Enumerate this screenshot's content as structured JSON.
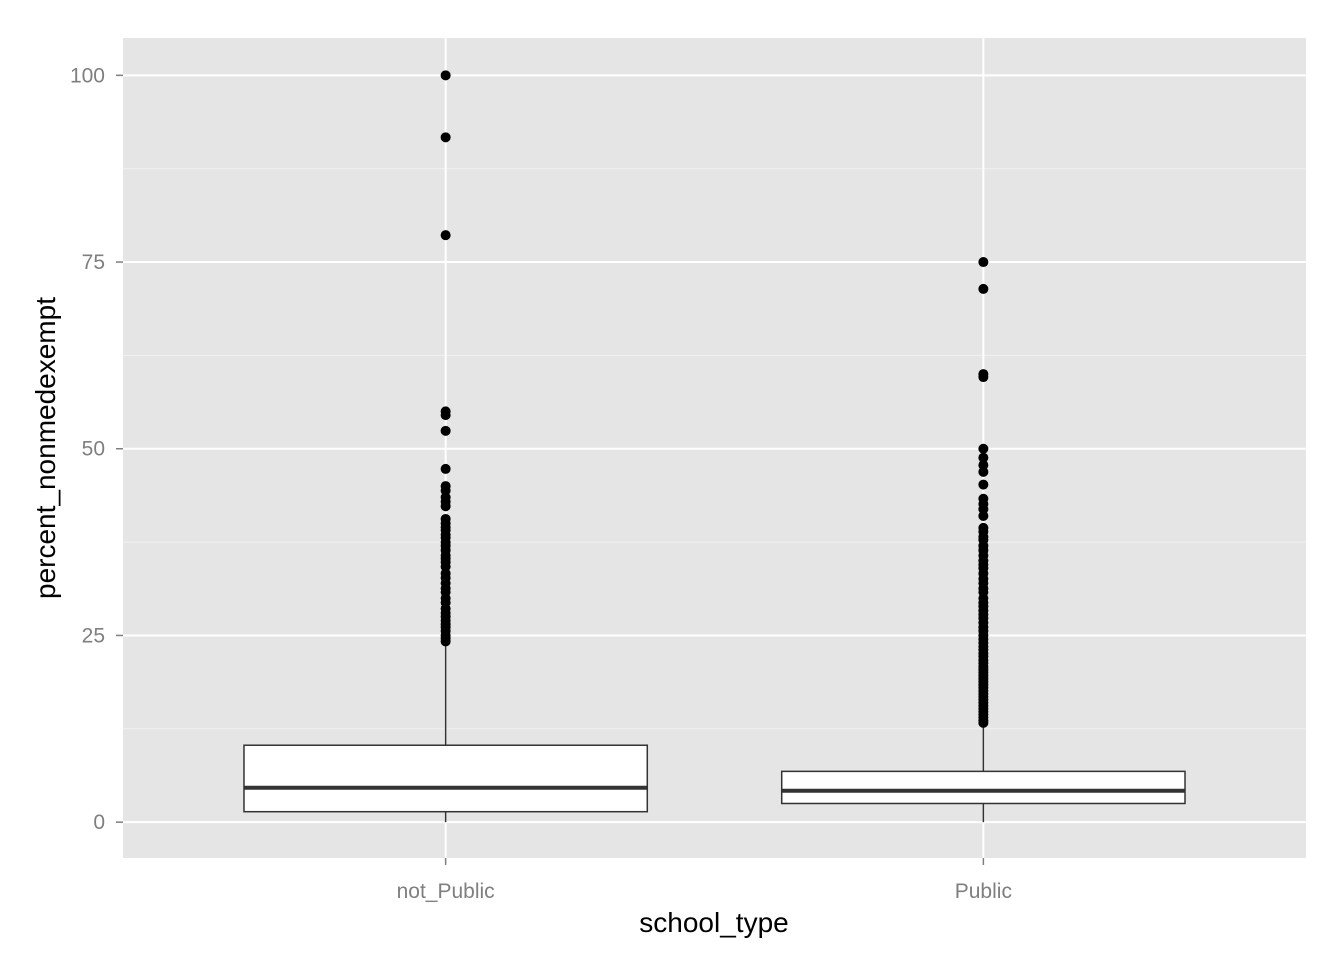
{
  "chart_data": {
    "type": "box",
    "title": "",
    "xlabel": "school_type",
    "ylabel": "percent_nonmedexempt",
    "ylim": [
      -4.8,
      105
    ],
    "yticks": [
      0,
      25,
      50,
      75,
      100
    ],
    "ytick_labels": [
      "0",
      "25",
      "50",
      "75",
      "100"
    ],
    "grid": true,
    "theme": {
      "panel_background": "#e5e5e5",
      "grid_major": "#ffffff",
      "grid_minor": "#f2f2f2",
      "box_fill": "#ffffff",
      "box_stroke": "#333333",
      "outlier_color": "#000000",
      "tick_label_color": "#7f7f7f"
    },
    "categories": [
      "not_Public",
      "Public"
    ],
    "boxes": [
      {
        "category": "not_Public",
        "min": 0,
        "q1": 1.4,
        "median": 4.6,
        "q3": 10.3,
        "whisker_high": 23.8,
        "outliers": [
          100,
          91.7,
          78.6,
          55.0,
          54.5,
          52.4,
          47.3,
          45.0,
          44.4,
          43.5,
          42.9,
          42.3,
          40.6,
          40.0,
          39.5,
          39.1,
          38.5,
          38.1,
          37.5,
          37.0,
          36.4,
          35.7,
          35.3,
          34.8,
          34.2,
          33.3,
          32.7,
          32.0,
          31.3,
          30.8,
          30.0,
          29.4,
          28.6,
          28.0,
          27.5,
          27.0,
          26.5,
          26.1,
          25.6,
          25.0,
          24.6,
          24.2
        ]
      },
      {
        "category": "Public",
        "min": 0,
        "q1": 2.5,
        "median": 4.2,
        "q3": 6.8,
        "whisker_high": 13.2,
        "outliers": [
          75.0,
          71.4,
          60.0,
          59.6,
          50.0,
          48.8,
          47.8,
          46.9,
          45.2,
          43.3,
          42.6,
          41.9,
          41.0,
          39.4,
          38.9,
          38.2,
          37.8,
          37.0,
          36.4,
          35.7,
          35.0,
          34.5,
          34.0,
          33.3,
          32.6,
          32.0,
          31.3,
          30.8,
          30.0,
          29.4,
          28.9,
          28.3,
          27.8,
          27.3,
          26.7,
          26.1,
          25.6,
          25.0,
          24.5,
          24.0,
          23.5,
          23.1,
          22.6,
          22.2,
          21.7,
          21.3,
          20.8,
          20.4,
          20.0,
          19.6,
          19.2,
          18.8,
          18.4,
          18.0,
          17.6,
          17.2,
          16.8,
          16.4,
          16.0,
          15.6,
          15.2,
          14.8,
          14.4,
          14.0,
          13.6,
          13.3
        ]
      }
    ]
  }
}
